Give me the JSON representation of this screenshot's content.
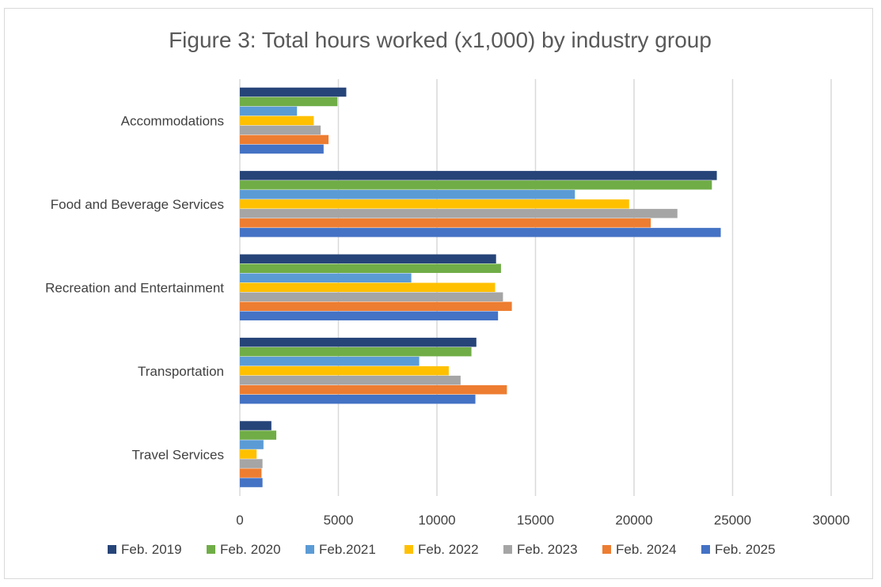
{
  "chart_data": {
    "type": "bar",
    "orientation": "horizontal",
    "title": "Figure 3: Total hours worked (x1,000) by industry group",
    "categories": [
      "Accommodations",
      "Food and Beverage Services",
      "Recreation and Entertainment",
      "Transportation",
      "Travel Services"
    ],
    "xlim": [
      0,
      30000
    ],
    "xticks": [
      0,
      5000,
      10000,
      15000,
      20000,
      25000,
      30000
    ],
    "grid": true,
    "legend_position": "bottom",
    "series": [
      {
        "name": "Feb. 2019",
        "color": "#264478",
        "values": [
          5400,
          24200,
          13000,
          12000,
          1600
        ]
      },
      {
        "name": "Feb. 2020",
        "color": "#70AD47",
        "values": [
          4950,
          23950,
          13250,
          11750,
          1850
        ]
      },
      {
        "name": "Feb.2021",
        "color": "#5B9BD5",
        "values": [
          2900,
          17000,
          8700,
          9100,
          1200
        ]
      },
      {
        "name": "Feb. 2022",
        "color": "#FFC000",
        "values": [
          3750,
          19750,
          12950,
          10600,
          850
        ]
      },
      {
        "name": "Feb. 2023",
        "color": "#A5A5A5",
        "values": [
          4100,
          22200,
          13350,
          11200,
          1150
        ]
      },
      {
        "name": "Feb. 2024",
        "color": "#ED7D31",
        "values": [
          4500,
          20850,
          13800,
          13550,
          1100
        ]
      },
      {
        "name": "Feb. 2025",
        "color": "#4472C4",
        "values": [
          4250,
          24400,
          13100,
          11950,
          1150
        ]
      }
    ]
  }
}
